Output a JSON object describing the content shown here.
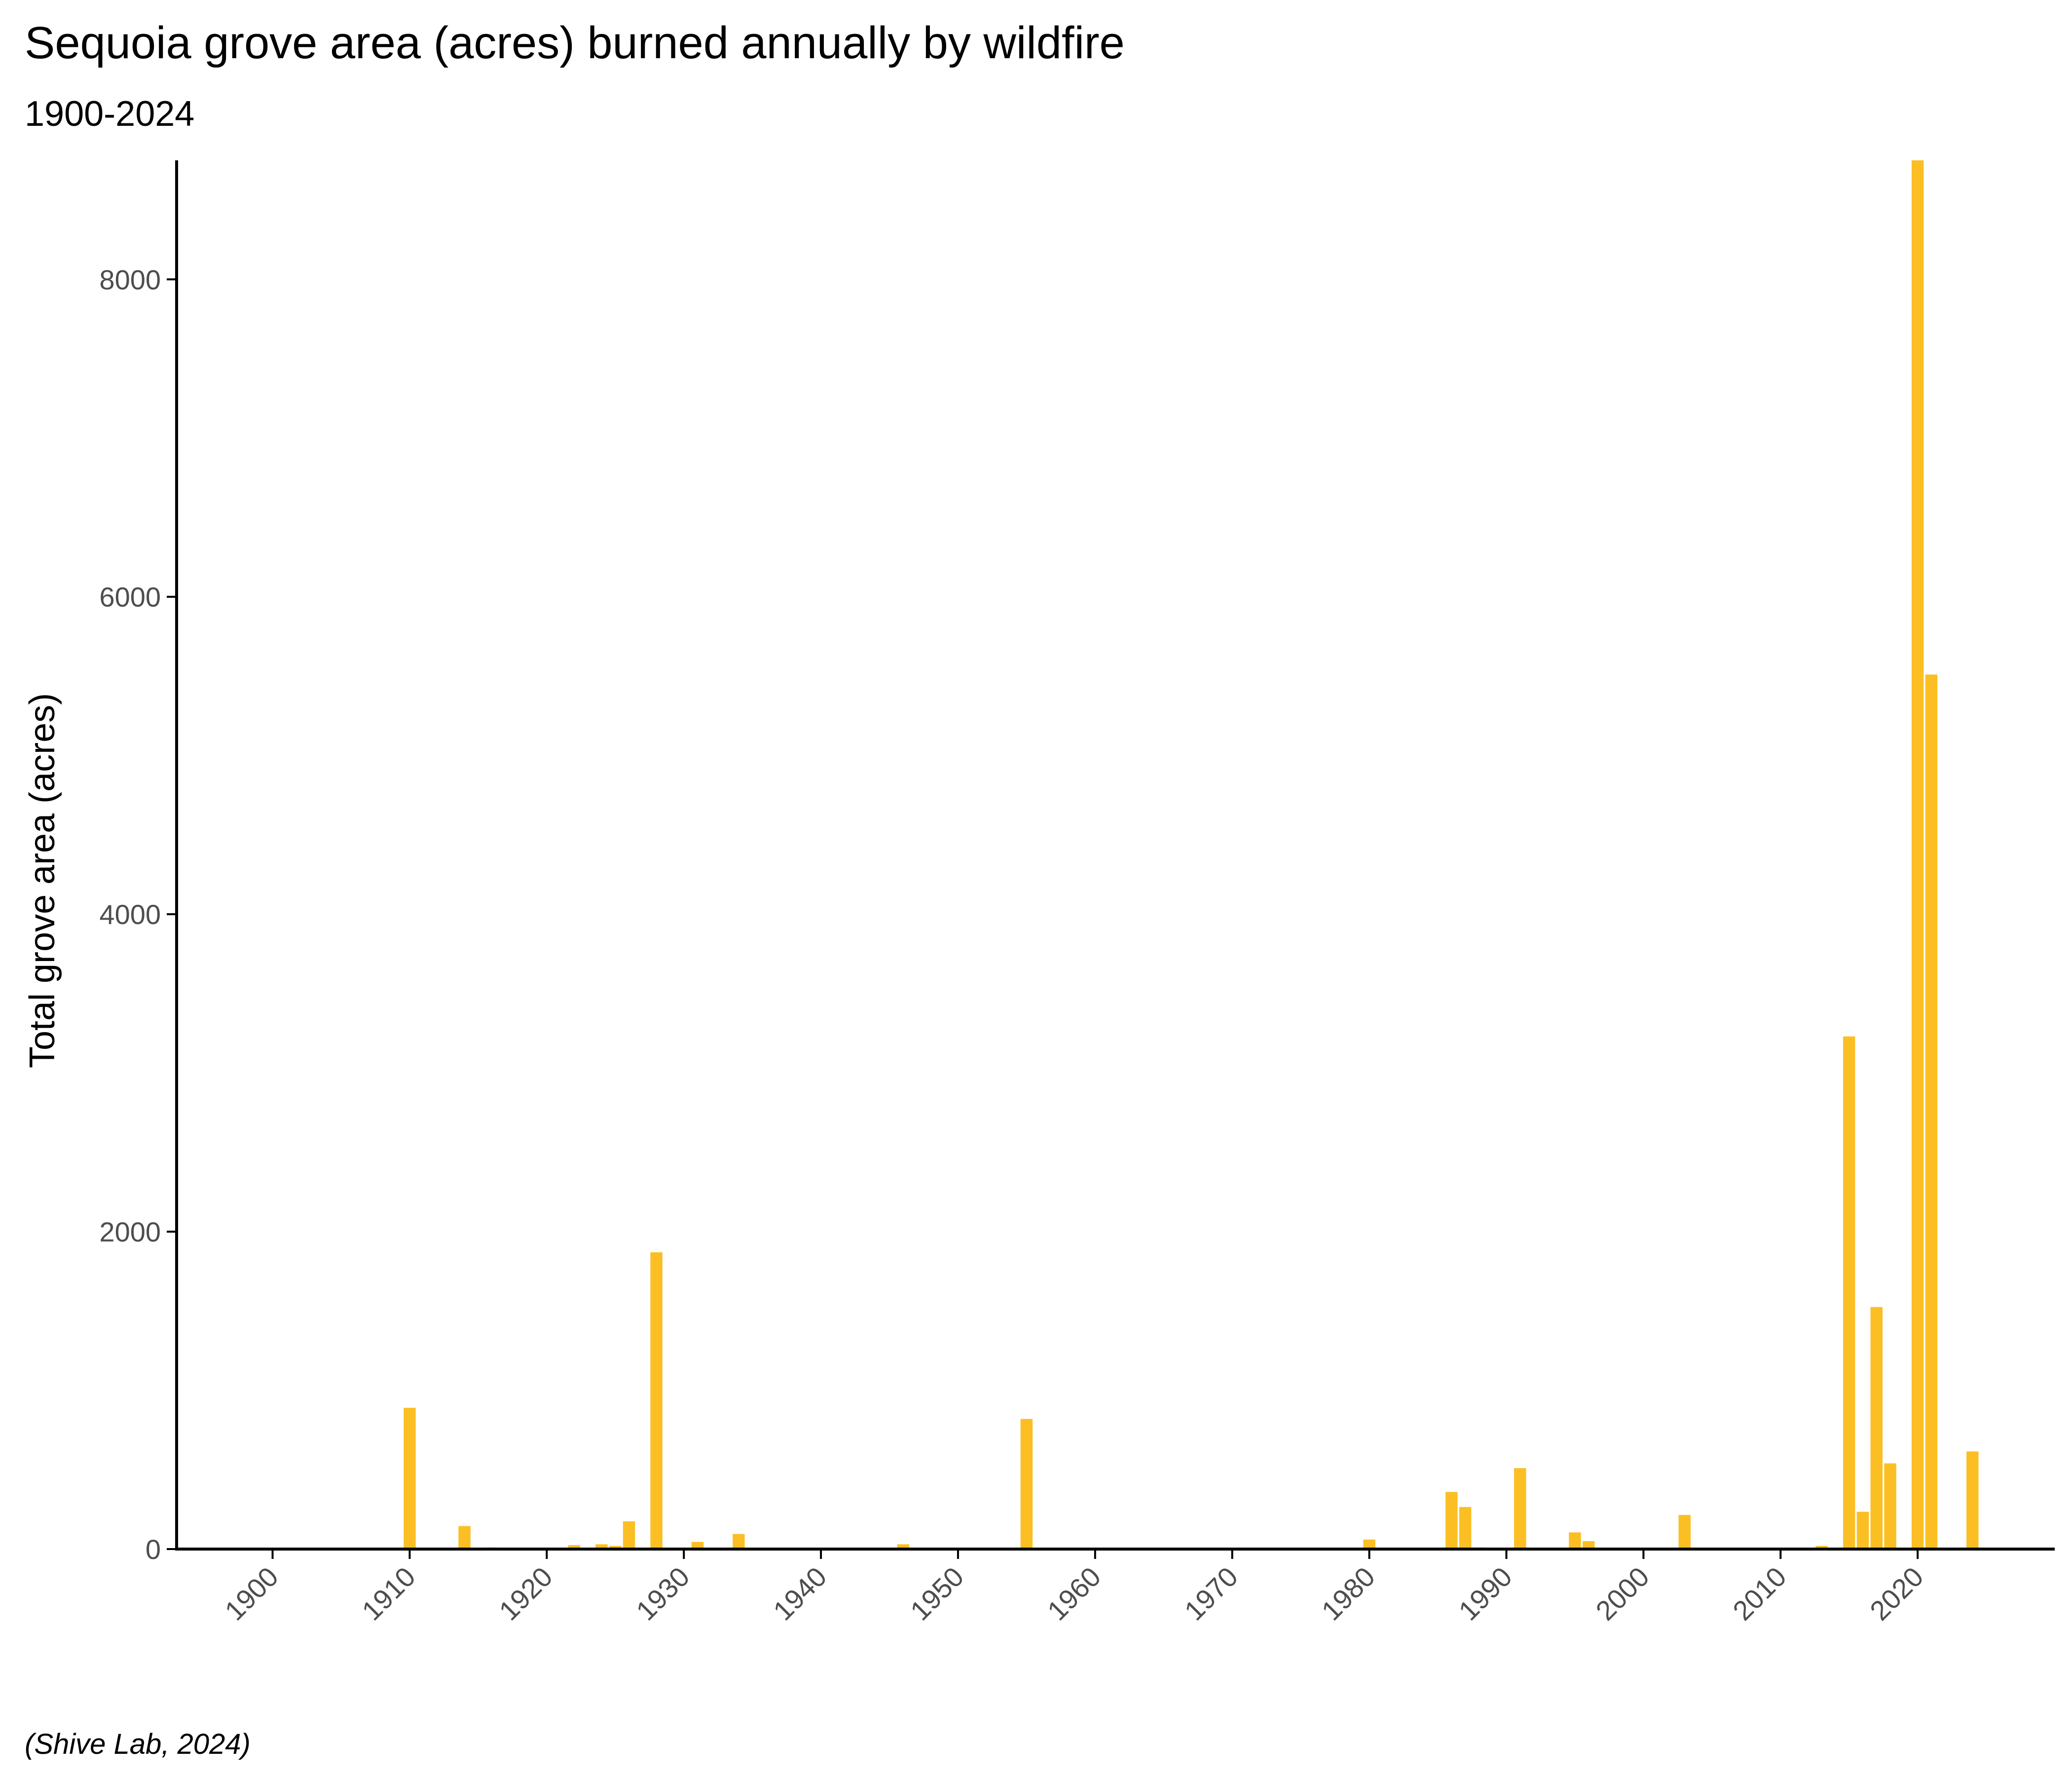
{
  "chart_data": {
    "type": "bar",
    "title": "Sequoia grove area (acres) burned annually by wildfire",
    "subtitle": "1900-2024",
    "xlabel": "",
    "ylabel": "Total grove area (acres)",
    "caption": "(Shive Lab, 2024)",
    "x_ticks": [
      1900,
      1910,
      1920,
      1930,
      1940,
      1950,
      1960,
      1970,
      1980,
      1990,
      2000,
      2010,
      2020
    ],
    "x_tick_labels": [
      "1900",
      "1910",
      "1920",
      "1930",
      "1940",
      "1950",
      "1960",
      "1970",
      "1980",
      "1990",
      "2000",
      "2010",
      "2020"
    ],
    "y_ticks": [
      0,
      2000,
      4000,
      6000,
      8000
    ],
    "y_tick_labels": [
      "0",
      "2000",
      "4000",
      "6000",
      "8000"
    ],
    "xlim": [
      1893,
      2030
    ],
    "ylim": [
      0,
      8750
    ],
    "grid": false,
    "bar_color": "#FBBF24",
    "series": [
      {
        "x": [
          1910,
          1914,
          1916,
          1917,
          1920,
          1922,
          1924,
          1925,
          1926,
          1928,
          1931,
          1934,
          1946,
          1955,
          1980,
          1986,
          1987,
          1988,
          1991,
          1995,
          1996,
          2003,
          2013,
          2015,
          2016,
          2017,
          2018,
          2020,
          2021,
          2024
        ],
        "values": [
          890,
          145,
          10,
          8,
          5,
          25,
          30,
          20,
          175,
          1870,
          45,
          95,
          30,
          820,
          60,
          360,
          265,
          10,
          510,
          105,
          50,
          215,
          20,
          3230,
          235,
          1525,
          540,
          8750,
          5510,
          615
        ]
      }
    ]
  }
}
